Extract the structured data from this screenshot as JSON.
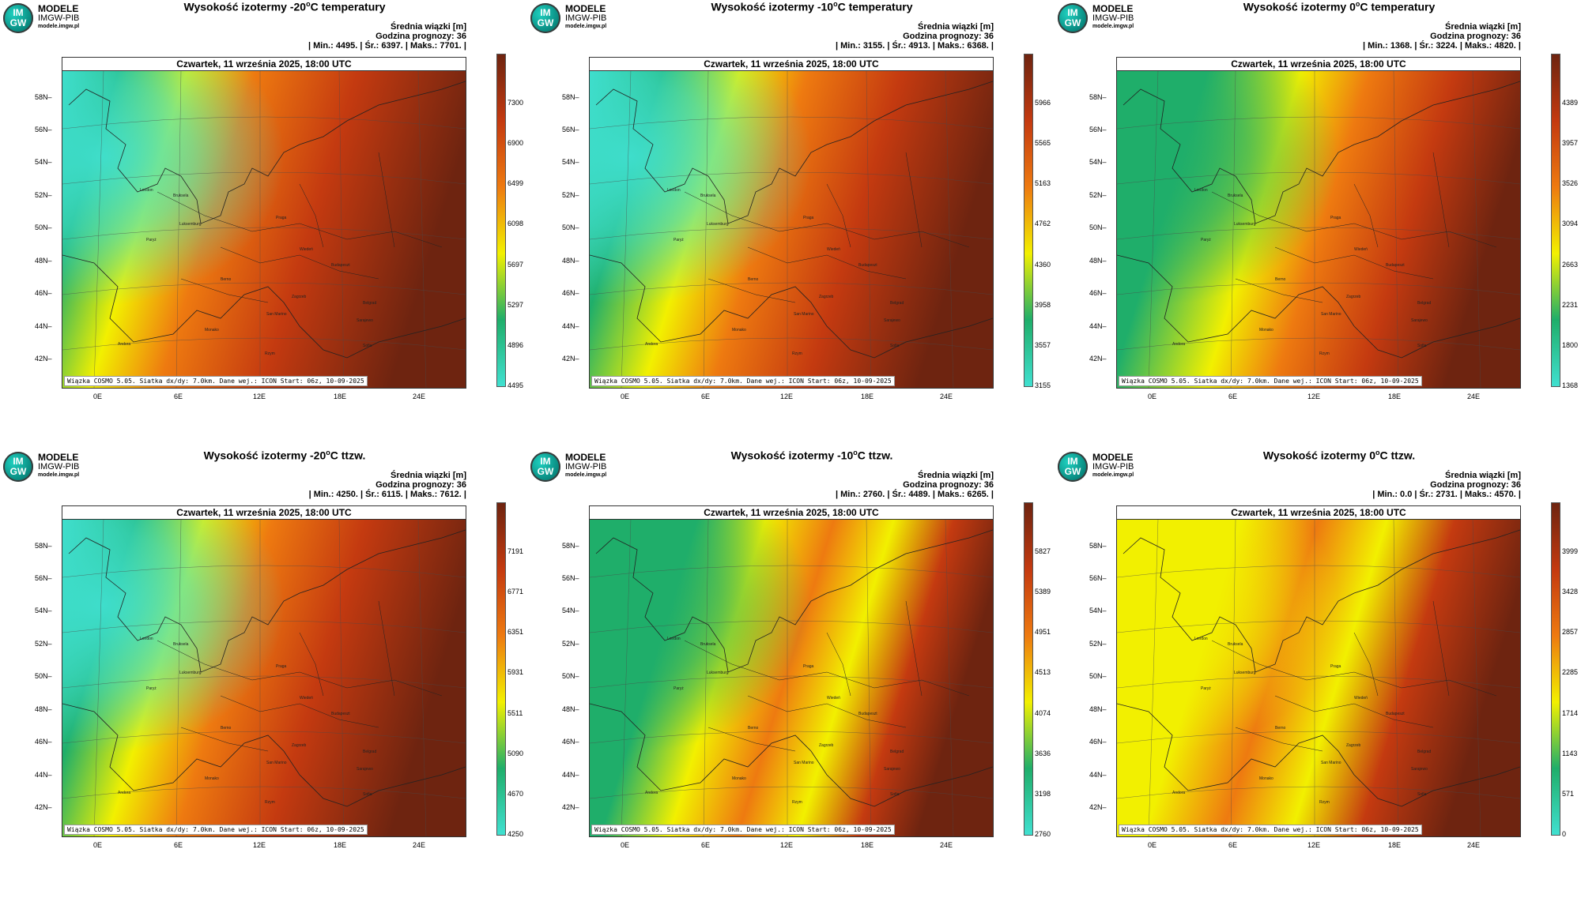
{
  "logo": {
    "abbr_top": "IM",
    "abbr_bottom": "GW",
    "line1": "MODELE",
    "line2": "IMGW-PIB",
    "line3": "modele.imgw.pl"
  },
  "common": {
    "subtitle": "Średnia wiązki [m]",
    "forecast_hour": "Godzina prognozy: 36",
    "date": "Czwartek, 11 września 2025, 18:00 UTC",
    "credit": "Wiązka COSMO 5.05. Siatka dx/dy: 7.0km. Dane wej.: ICON Start: 06z, 10-09-2025",
    "lat_labels": [
      "58N",
      "56N",
      "54N",
      "52N",
      "50N",
      "48N",
      "46N",
      "44N",
      "42N"
    ],
    "lon_labels": [
      "0E",
      "6E",
      "12E",
      "18E",
      "24E"
    ],
    "cities": [
      "London",
      "Bruksela",
      "Luksemburg",
      "Paryż",
      "Praga",
      "Wiedeń",
      "Budapeszt",
      "Berno",
      "Zagrzeb",
      "Belgrad",
      "San Marino",
      "Sarajewo",
      "Andora",
      "Monako",
      "Sofia",
      "Rzym"
    ]
  },
  "panels": [
    {
      "title_pre": "Wysokość izotermy -20",
      "title_sup": "o",
      "title_post": "C temperatury",
      "stats": "| Min.:  4495. | Śr.:   6397. | Maks.:  7701. |",
      "colorbar": [
        "7300",
        "6900",
        "6499",
        "6098",
        "5697",
        "5297",
        "4896",
        "4495"
      ]
    },
    {
      "title_pre": "Wysokość izotermy -10",
      "title_sup": "o",
      "title_post": "C temperatury",
      "stats": "| Min.:  3155. | Śr.:   4913. | Maks.:  6368. |",
      "colorbar": [
        "5966",
        "5565",
        "5163",
        "4762",
        "4360",
        "3958",
        "3557",
        "3155"
      ]
    },
    {
      "title_pre": "Wysokość izotermy 0",
      "title_sup": "o",
      "title_post": "C temperatury",
      "stats": "| Min.:  1368. | Śr.:   3224. | Maks.:  4820. |",
      "colorbar": [
        "4389",
        "3957",
        "3526",
        "3094",
        "2663",
        "2231",
        "1800",
        "1368"
      ]
    },
    {
      "title_pre": "Wysokość izotermy -20",
      "title_sup": "o",
      "title_post": "C ttzw.",
      "stats": "| Min.:  4250. | Śr.:   6115. | Maks.:  7612. |",
      "colorbar": [
        "7191",
        "6771",
        "6351",
        "5931",
        "5511",
        "5090",
        "4670",
        "4250"
      ]
    },
    {
      "title_pre": "Wysokość izotermy -10",
      "title_sup": "o",
      "title_post": "C ttzw.",
      "stats": "| Min.:  2760. | Śr.:   4489. | Maks.:  6265. |",
      "colorbar": [
        "5827",
        "5389",
        "4951",
        "4513",
        "4074",
        "3636",
        "3198",
        "2760"
      ]
    },
    {
      "title_pre": "Wysokość izotermy 0",
      "title_sup": "o",
      "title_post": "C ttzw.",
      "stats": "| Min.:    0.0 | Śr.:   2731. | Maks.:  4570. |",
      "colorbar": [
        "3999",
        "3428",
        "2857",
        "2285",
        "1714",
        "1143",
        "571",
        "0"
      ]
    }
  ],
  "colors": {
    "low": "#40e0d0",
    "green": "#1fae6a",
    "yellow": "#f2f000",
    "orange": "#ee7a10",
    "red": "#c43a10",
    "dark": "#6e2410"
  }
}
